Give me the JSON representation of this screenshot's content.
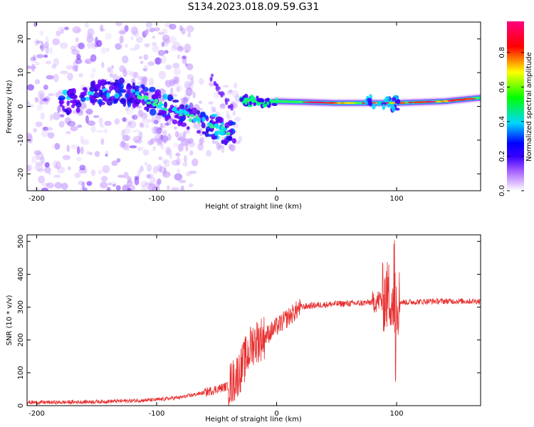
{
  "figure": {
    "title": "S134.2023.018.09.59.G31"
  },
  "chart_data": [
    {
      "type": "heatmap",
      "xlabel": "Height of straight line (km)",
      "ylabel": "Frequency (Hz)",
      "xlim": [
        -208,
        170
      ],
      "ylim": [
        -25,
        25
      ],
      "xticks": [
        -200,
        -100,
        0,
        100
      ],
      "yticks": [
        -20,
        -10,
        0,
        10,
        20
      ],
      "colorbar": {
        "label": "Normalized spectral amplitude",
        "range": [
          0,
          1
        ],
        "ticks": [
          "0.0",
          "0.2",
          "0.4",
          "0.6",
          "0.8"
        ],
        "colors": [
          "#ffffff",
          "#a35bff",
          "#3a00ff",
          "#0000ff",
          "#00d8ff",
          "#00ff00",
          "#ffff00",
          "#ff0000",
          "#ff0080"
        ]
      },
      "ridge": {
        "descending": [
          [
            -178,
            1
          ],
          [
            -160,
            3
          ],
          [
            -140,
            4.5
          ],
          [
            -120,
            4
          ],
          [
            -100,
            1
          ],
          [
            -80,
            -2
          ],
          [
            -60,
            -5
          ],
          [
            -40,
            -8
          ]
        ],
        "flat": [
          [
            -28,
            2
          ],
          [
            -10,
            1
          ],
          [
            0,
            1.5
          ],
          [
            50,
            1
          ],
          [
            100,
            1
          ],
          [
            140,
            1.5
          ],
          [
            168,
            2.5
          ]
        ]
      }
    },
    {
      "type": "line",
      "xlabel": "Height of straight line (km)",
      "ylabel": "SNR (10 * v/v)",
      "xlim": [
        -208,
        170
      ],
      "ylim": [
        0,
        520
      ],
      "xticks": [
        -200,
        -100,
        0,
        100
      ],
      "yticks": [
        0,
        100,
        200,
        300,
        400,
        500
      ],
      "color": "#e83030",
      "series": [
        {
          "x": [
            -208,
            -180,
            -150,
            -120,
            -100,
            -80,
            -60,
            -50,
            -40,
            -35,
            -30,
            -25,
            -20,
            -15,
            -10,
            -5,
            0,
            10,
            20,
            30,
            50,
            70,
            80,
            85,
            90,
            95,
            98,
            100,
            105,
            110,
            130,
            150,
            170
          ],
          "values": [
            10,
            10,
            12,
            15,
            18,
            25,
            40,
            50,
            60,
            80,
            110,
            150,
            190,
            200,
            210,
            225,
            240,
            270,
            300,
            305,
            310,
            312,
            315,
            320,
            330,
            340,
            300,
            320,
            315,
            315,
            318,
            318,
            318
          ]
        }
      ]
    }
  ]
}
